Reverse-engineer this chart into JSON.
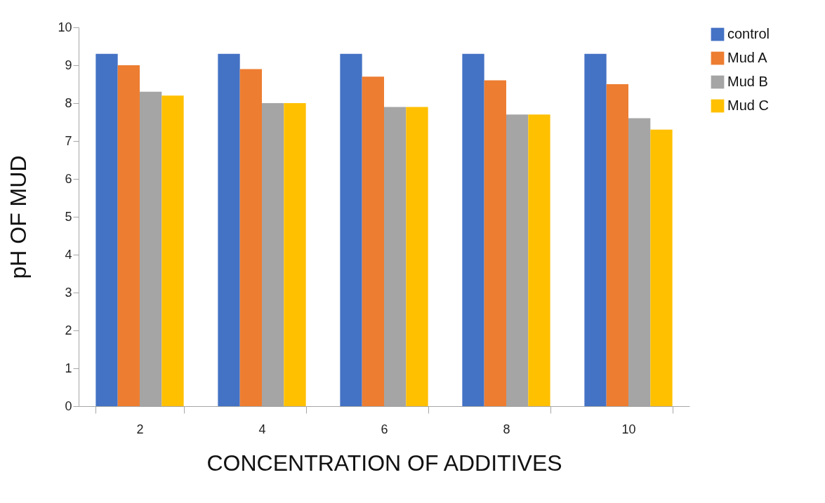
{
  "chart_data": {
    "type": "bar",
    "xlabel": "CONCENTRATION OF ADDITIVES",
    "ylabel": "pH OF MUD",
    "categories": [
      "2",
      "4",
      "6",
      "8",
      "10"
    ],
    "series": [
      {
        "name": "control",
        "color": "#4472c4",
        "values": [
          9.3,
          9.3,
          9.3,
          9.3,
          9.3
        ]
      },
      {
        "name": "Mud A",
        "color": "#ed7d31",
        "values": [
          9.0,
          8.9,
          8.7,
          8.6,
          8.5
        ]
      },
      {
        "name": "Mud B",
        "color": "#a5a5a5",
        "values": [
          8.3,
          8.0,
          7.9,
          7.7,
          7.6
        ]
      },
      {
        "name": "Mud C",
        "color": "#ffc000",
        "values": [
          8.2,
          8.0,
          7.9,
          7.7,
          7.3
        ]
      }
    ],
    "ylim": [
      0,
      10
    ],
    "yticks": [
      0,
      1,
      2,
      3,
      4,
      5,
      6,
      7,
      8,
      9,
      10
    ],
    "grid": false,
    "legend": "right"
  }
}
